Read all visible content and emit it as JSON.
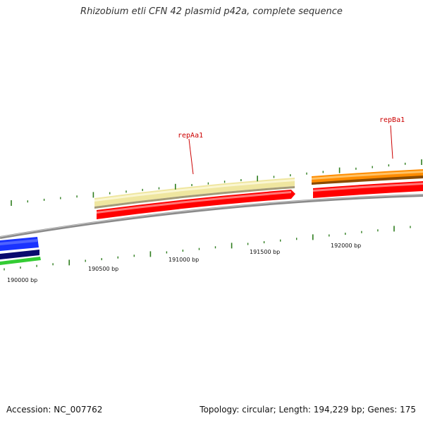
{
  "title": "Rhizobium etli CFN 42 plasmid p42a, complete sequence",
  "footer": {
    "accession": "Accession: NC_007762",
    "summary": "Topology: circular; Length: 194,229 bp; Genes: 175"
  },
  "ruler_labels": [
    "190000 bp",
    "190500 bp",
    "191000 bp",
    "191500 bp",
    "192000 bp"
  ],
  "gene_labels": [
    "repAa1",
    "repBa1"
  ],
  "colors": {
    "backbone": "#888888",
    "tick": "#2e7d1e",
    "gene_label": "#cc0000",
    "forward_pale": "#efe6a0",
    "forward_orange": "#ff8c00",
    "reverse_red": "#ff0000",
    "blue": "#1a33ff",
    "navy": "#0a0a6e",
    "green": "#33cc33"
  }
}
